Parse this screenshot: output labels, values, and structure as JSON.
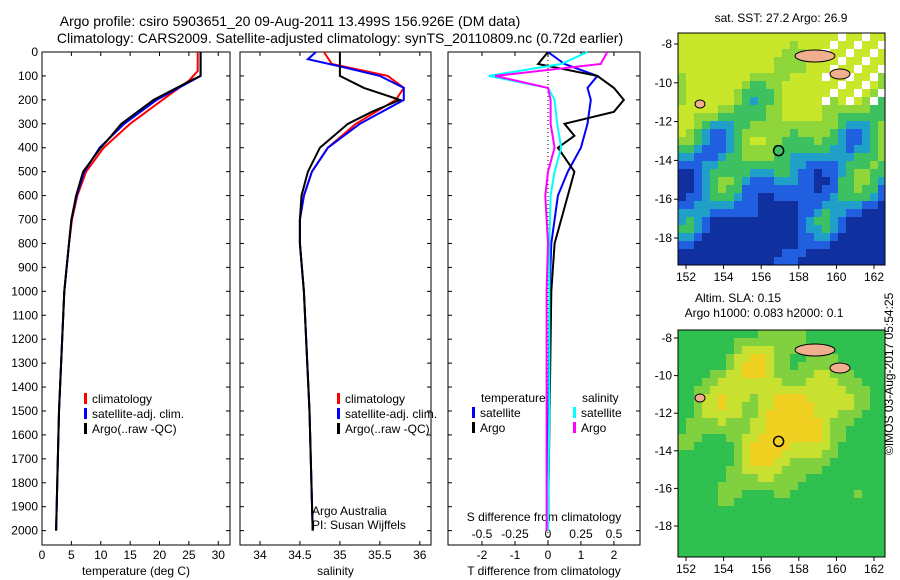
{
  "title_line1": "Argo profile: csiro 5903651_20 09-Aug-2011 13.499S 156.926E (DM data)",
  "title_line2": "Climatology: CARS2009. Satellite-adjusted climatology: synTS_20110809.nc (0.72d earlier)",
  "watermark": "©IMOS 03-Aug-2017 05:54:25",
  "colors": {
    "climatology": "#ff0000",
    "satellite": "#0000ff",
    "argo": "#000000",
    "sal_satellite": "#00ffff",
    "sal_argo": "#ff00ff"
  },
  "chart_data": [
    {
      "type": "line",
      "title": "",
      "xlabel": "temperature (deg C)",
      "ylabel": "",
      "xlim": [
        0,
        32
      ],
      "ylim": [
        2060,
        0
      ],
      "xticks": [
        0,
        5,
        10,
        15,
        20,
        25,
        30
      ],
      "yticks": [
        0,
        100,
        200,
        300,
        400,
        500,
        600,
        700,
        800,
        900,
        1000,
        1100,
        1200,
        1300,
        1400,
        1500,
        1600,
        1700,
        1800,
        1900,
        2000
      ],
      "legend": [
        "climatology",
        "satellite-adj. clim.",
        "Argo(..raw -QC)"
      ],
      "legend_placement": "lower-center",
      "series": [
        {
          "name": "climatology",
          "color": "#ff0000",
          "depth": [
            0,
            80,
            120,
            200,
            300,
            400,
            500,
            600,
            700,
            800,
            1000,
            1500,
            2000
          ],
          "values": [
            26.5,
            26.5,
            25,
            20.5,
            15,
            10.5,
            7.5,
            6,
            5.1,
            4.6,
            3.8,
            2.9,
            2.4
          ]
        },
        {
          "name": "satellite-adj. clim.",
          "color": "#0000ff",
          "depth": [
            0,
            100,
            120,
            200,
            300,
            400,
            500,
            600,
            700,
            800,
            1000,
            1500,
            2000
          ],
          "values": [
            27,
            27,
            25.5,
            19.5,
            14,
            9.8,
            7.2,
            5.9,
            5,
            4.6,
            3.8,
            2.9,
            2.4
          ]
        },
        {
          "name": "Argo(..raw -QC)",
          "color": "#000000",
          "depth": [
            0,
            100,
            120,
            200,
            300,
            350,
            400,
            500,
            600,
            700,
            800,
            1000,
            1500,
            2000
          ],
          "values": [
            27,
            27,
            25.3,
            19,
            13.5,
            11.8,
            10,
            7,
            5.8,
            5,
            4.6,
            3.8,
            2.9,
            2.4
          ]
        }
      ]
    },
    {
      "type": "line",
      "title": "",
      "xlabel": "salinity",
      "xlim": [
        33.75,
        36.14
      ],
      "ylim": [
        2060,
        0
      ],
      "xticks": [
        34,
        34.5,
        35,
        35.5,
        36
      ],
      "legend": [
        "climatology",
        "satellite-adj. clim.",
        "Argo(..raw -QC)"
      ],
      "legend_placement": "lower-center",
      "annotation": [
        "Argo Australia",
        "PI: Susan Wijffels"
      ],
      "series": [
        {
          "name": "climatology",
          "color": "#ff0000",
          "depth": [
            0,
            50,
            100,
            150,
            200,
            300,
            400,
            500,
            600,
            700,
            800,
            1000,
            1500,
            2000
          ],
          "values": [
            34.8,
            34.9,
            35.6,
            35.8,
            35.7,
            35.2,
            34.85,
            34.65,
            34.55,
            34.5,
            34.5,
            34.55,
            34.62,
            34.66
          ]
        },
        {
          "name": "satellite-adj. clim.",
          "color": "#0000ff",
          "depth": [
            0,
            30,
            60,
            100,
            150,
            200,
            300,
            400,
            500,
            600,
            700,
            800,
            1000,
            1500,
            2000
          ],
          "values": [
            34.7,
            34.6,
            35.0,
            35.5,
            35.8,
            35.8,
            35.25,
            34.85,
            34.65,
            34.55,
            34.5,
            34.5,
            34.55,
            34.62,
            34.66
          ]
        },
        {
          "name": "Argo(..raw -QC)",
          "color": "#000000",
          "depth": [
            0,
            100,
            150,
            200,
            250,
            300,
            400,
            500,
            600,
            700,
            800,
            1000,
            1500,
            2000
          ],
          "values": [
            35.0,
            35.0,
            35.3,
            35.75,
            35.4,
            35.1,
            34.75,
            34.6,
            34.52,
            34.5,
            34.5,
            34.55,
            34.62,
            34.66
          ]
        }
      ]
    },
    {
      "type": "line",
      "title": "",
      "xlabel": "T difference from climatology",
      "xlabel2": "S difference from climatology",
      "xlim": [
        -3.03,
        2.79
      ],
      "ylim": [
        2060,
        0
      ],
      "xticks": [
        -2,
        -1,
        0,
        1,
        2
      ],
      "xticks2": [
        -0.5,
        -0.25,
        0,
        0.25,
        0.5
      ],
      "legend_titles": [
        "temperature",
        "salinity"
      ],
      "legend": [
        "satellite",
        "Argo",
        "satellite",
        "Argo"
      ],
      "series": [
        {
          "name": "temperature satellite",
          "color": "#0000ff",
          "depth": [
            0,
            50,
            100,
            150,
            200,
            300,
            400,
            500,
            600,
            800,
            1000,
            1500,
            2000
          ],
          "values": [
            0,
            0.5,
            1.5,
            1.2,
            1.3,
            1.2,
            1.0,
            0.6,
            0.3,
            0.1,
            0.05,
            0.02,
            0
          ]
        },
        {
          "name": "temperature Argo",
          "color": "#000000",
          "depth": [
            0,
            50,
            100,
            150,
            200,
            250,
            300,
            350,
            400,
            500,
            600,
            800,
            1000,
            1500,
            2000
          ],
          "values": [
            0,
            -0.3,
            1.5,
            2.0,
            2.3,
            2.0,
            0.5,
            0.8,
            0.3,
            0.8,
            0.6,
            0.2,
            0.1,
            0.05,
            0
          ]
        },
        {
          "name": "salinity satellite",
          "color": "#00ffff",
          "depth": [
            0,
            50,
            100,
            150,
            200,
            300,
            400,
            500,
            600,
            800,
            1000,
            1500,
            2000
          ],
          "values": [
            0.3,
            0.1,
            -0.45,
            0,
            0.05,
            0.07,
            0.1,
            0.05,
            0.02,
            0.01,
            0.01,
            0.01,
            0
          ]
        },
        {
          "name": "salinity Argo",
          "color": "#ff00ff",
          "depth": [
            0,
            50,
            100,
            150,
            200,
            300,
            400,
            500,
            600,
            800,
            1000,
            1500,
            2000
          ],
          "values": [
            0.45,
            0.4,
            -0.4,
            0,
            0.02,
            0.02,
            0.05,
            0,
            -0.02,
            0,
            -0.01,
            -0.01,
            -0.01
          ]
        }
      ]
    }
  ],
  "maps": [
    {
      "title": "sat. SST: 27.2 Argo: 26.9",
      "subtitle": "",
      "xticks": [
        152,
        154,
        156,
        158,
        160,
        162
      ],
      "yticks": [
        -8,
        -10,
        -12,
        -14,
        -16,
        -18
      ]
    },
    {
      "title": "Altim. SLA: 0.15",
      "subtitle": "Argo h1000: 0.083 h2000: 0.1",
      "xticks": [
        152,
        154,
        156,
        158,
        160,
        162
      ],
      "yticks": [
        -8,
        -10,
        -12,
        -14,
        -16,
        -18
      ]
    }
  ],
  "argo_position": {
    "lon": 156.926,
    "lat": -13.499
  }
}
